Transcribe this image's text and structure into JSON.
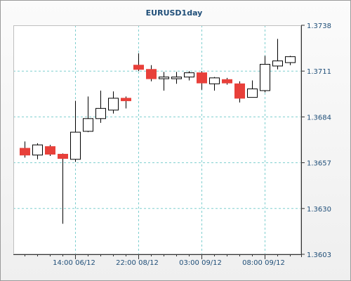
{
  "chart_data": {
    "type": "candlestick",
    "title": "EURUSD1day",
    "ylim": [
      1.3603,
      1.3738
    ],
    "yticks": [
      "1.3738",
      "1.3711",
      "1.3684",
      "1.3657",
      "1.3630",
      "1.3603"
    ],
    "xtick_labels": [
      "14:00 06/12",
      "22:00 08/12",
      "03:00 09/12",
      "08:00 09/12"
    ],
    "grid": true,
    "colors": {
      "up": "#ffffff",
      "down": "#e8403a",
      "line": "#000000",
      "grid": "#7ecfcf"
    },
    "candles": [
      {
        "open": 1.36655,
        "close": 1.36615,
        "high": 1.36695,
        "low": 1.366,
        "dir": "down"
      },
      {
        "open": 1.36615,
        "close": 1.36675,
        "high": 1.36685,
        "low": 1.3659,
        "dir": "up"
      },
      {
        "open": 1.36665,
        "close": 1.3662,
        "high": 1.36675,
        "low": 1.3661,
        "dir": "down"
      },
      {
        "open": 1.3662,
        "close": 1.36595,
        "high": 1.36625,
        "low": 1.3621,
        "dir": "down"
      },
      {
        "open": 1.3659,
        "close": 1.3675,
        "high": 1.36935,
        "low": 1.36575,
        "dir": "up"
      },
      {
        "open": 1.36755,
        "close": 1.3683,
        "high": 1.3696,
        "low": 1.3675,
        "dir": "up"
      },
      {
        "open": 1.3683,
        "close": 1.3689,
        "high": 1.36995,
        "low": 1.36805,
        "dir": "up"
      },
      {
        "open": 1.3688,
        "close": 1.3695,
        "high": 1.3699,
        "low": 1.3686,
        "dir": "up"
      },
      {
        "open": 1.3695,
        "close": 1.36935,
        "high": 1.3696,
        "low": 1.3689,
        "dir": "down"
      },
      {
        "open": 1.37145,
        "close": 1.3712,
        "high": 1.37215,
        "low": 1.3711,
        "dir": "down"
      },
      {
        "open": 1.3712,
        "close": 1.37065,
        "high": 1.37145,
        "low": 1.3705,
        "dir": "down"
      },
      {
        "open": 1.37065,
        "close": 1.37075,
        "high": 1.37105,
        "low": 1.36995,
        "dir": "up"
      },
      {
        "open": 1.37065,
        "close": 1.37075,
        "high": 1.37105,
        "low": 1.37035,
        "dir": "up"
      },
      {
        "open": 1.37075,
        "close": 1.371,
        "high": 1.3711,
        "low": 1.37055,
        "dir": "up"
      },
      {
        "open": 1.371,
        "close": 1.3704,
        "high": 1.3711,
        "low": 1.37,
        "dir": "down"
      },
      {
        "open": 1.37035,
        "close": 1.3707,
        "high": 1.37075,
        "low": 1.36995,
        "dir": "up"
      },
      {
        "open": 1.3706,
        "close": 1.3704,
        "high": 1.3707,
        "low": 1.3703,
        "dir": "down"
      },
      {
        "open": 1.37035,
        "close": 1.3695,
        "high": 1.3705,
        "low": 1.36925,
        "dir": "down"
      },
      {
        "open": 1.36955,
        "close": 1.37005,
        "high": 1.37055,
        "low": 1.36955,
        "dir": "up"
      },
      {
        "open": 1.36995,
        "close": 1.3715,
        "high": 1.372,
        "low": 1.36985,
        "dir": "up"
      },
      {
        "open": 1.3714,
        "close": 1.3717,
        "high": 1.373,
        "low": 1.3712,
        "dir": "up"
      },
      {
        "open": 1.3716,
        "close": 1.37195,
        "high": 1.372,
        "low": 1.37145,
        "dir": "up"
      }
    ]
  }
}
